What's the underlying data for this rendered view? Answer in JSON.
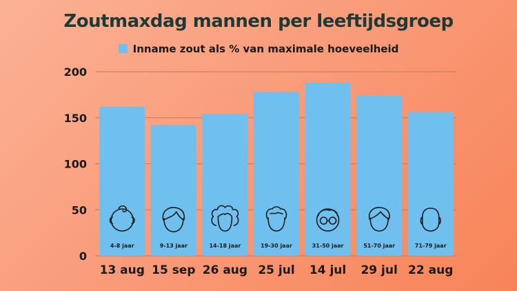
{
  "chart_data": {
    "type": "bar",
    "title": "Zoutmaxdag mannen per leeftijdsgroep",
    "series": [
      {
        "name": "Inname zout als % van maximale hoeveelheid",
        "values": [
          162,
          142,
          154,
          178,
          188,
          174,
          156
        ],
        "color": "#6fc0ee"
      }
    ],
    "categories": [
      "13 aug",
      "15 sep",
      "26 aug",
      "25 jul",
      "14 jul",
      "29 jul",
      "22 aug"
    ],
    "bar_labels": [
      "4-8 jaar",
      "9-13 jaar",
      "14-18 jaar",
      "19-30 jaar",
      "31-50 jaar",
      "51-70 jaar",
      "71-79 jaar"
    ],
    "bar_icons": [
      "baby-face-icon",
      "child-face-icon",
      "curly-hair-face-icon",
      "wavy-hair-face-icon",
      "glasses-face-icon",
      "combed-hair-face-icon",
      "bald-face-icon"
    ],
    "ylim": [
      0,
      200
    ],
    "yticks": [
      0,
      50,
      100,
      150,
      200
    ],
    "xlabel": "",
    "ylabel": "",
    "grid": true,
    "legend_position": "top-center"
  }
}
